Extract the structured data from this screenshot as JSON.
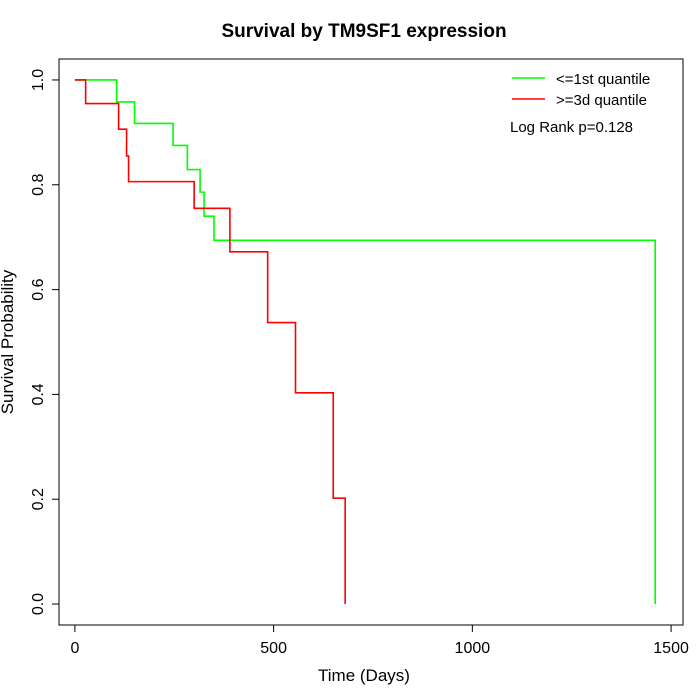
{
  "chart_data": {
    "type": "line",
    "title": "Survival by TM9SF1 expression",
    "xlabel": "Time (Days)",
    "ylabel": "Survival Probability",
    "xlim": [
      -40,
      1530
    ],
    "ylim": [
      -0.04,
      1.04
    ],
    "x_ticks": [
      0,
      500,
      1000,
      1500
    ],
    "x_tick_labels": [
      "0",
      "500",
      "1000",
      "1500"
    ],
    "y_ticks": [
      0.0,
      0.2,
      0.4,
      0.6,
      0.8,
      1.0
    ],
    "y_tick_labels": [
      "0.0",
      "0.2",
      "0.4",
      "0.6",
      "0.8",
      "1.0"
    ],
    "grid": false,
    "legend_position": "top-right",
    "annotation": "Log Rank p=0.128",
    "series": [
      {
        "name": "<=1st quantile",
        "color": "#00FF00",
        "step_points": [
          [
            0,
            1.0
          ],
          [
            105,
            0.958
          ],
          [
            150,
            0.917
          ],
          [
            247,
            0.875
          ],
          [
            283,
            0.829
          ],
          [
            315,
            0.786
          ],
          [
            325,
            0.74
          ],
          [
            350,
            0.694
          ],
          [
            1460,
            0.694
          ],
          [
            1460,
            0.0
          ]
        ]
      },
      {
        "name": ">=3d quantile",
        "color": "#FF0000",
        "step_points": [
          [
            0,
            1.0
          ],
          [
            27,
            0.955
          ],
          [
            110,
            0.906
          ],
          [
            130,
            0.855
          ],
          [
            135,
            0.806
          ],
          [
            300,
            0.755
          ],
          [
            390,
            0.672
          ],
          [
            485,
            0.537
          ],
          [
            555,
            0.403
          ],
          [
            650,
            0.202
          ],
          [
            680,
            0.0
          ]
        ]
      }
    ]
  }
}
